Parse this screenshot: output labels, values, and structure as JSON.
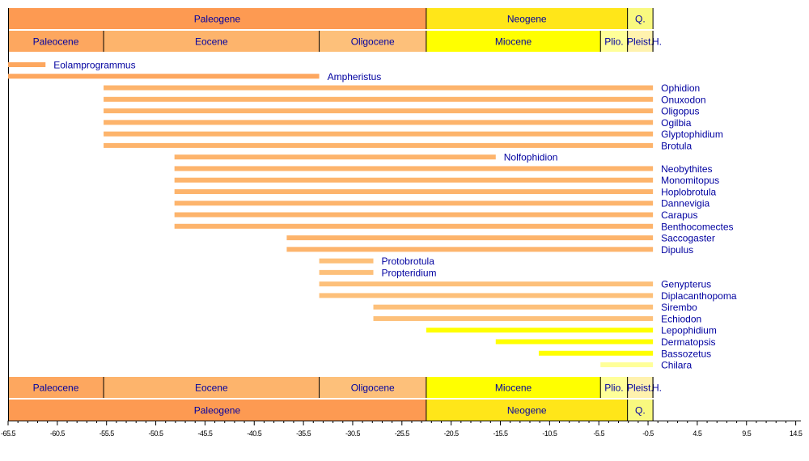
{
  "chart_data": {
    "type": "bar",
    "orientation": "horizontal-range",
    "title": "",
    "xlabel": "",
    "ylabel": "",
    "xlim": [
      -65.5,
      14.5
    ],
    "x_ticks": [
      -65.5,
      -60.5,
      -55.5,
      -50.5,
      -45.5,
      -40.5,
      -35.5,
      -30.5,
      -25.5,
      -20.5,
      -15.5,
      -10.5,
      -5.5,
      -0.5,
      4.5,
      9.5,
      14.5
    ],
    "grid": false,
    "periods": [
      {
        "name": "Paleogene",
        "start": -65.5,
        "end": -23.03,
        "color": "#FD9A52"
      },
      {
        "name": "Neogene",
        "start": -23.03,
        "end": -2.588,
        "color": "#FFE619"
      },
      {
        "name": "Q.",
        "start": -2.588,
        "end": 0,
        "color": "#F9F97F"
      }
    ],
    "epochs": [
      {
        "name": "Paleocene",
        "start": -65.5,
        "end": -55.8,
        "color": "#FDA75F"
      },
      {
        "name": "Eocene",
        "start": -55.8,
        "end": -33.9,
        "color": "#FDB46C"
      },
      {
        "name": "Oligocene",
        "start": -33.9,
        "end": -23.03,
        "color": "#FDC07A"
      },
      {
        "name": "Miocene",
        "start": -23.03,
        "end": -5.332,
        "color": "#FFFF00"
      },
      {
        "name": "Plio.",
        "start": -5.332,
        "end": -2.588,
        "color": "#FFFF99"
      },
      {
        "name": "Pleist.",
        "start": -2.588,
        "end": -0.0117,
        "color": "#FFF2AE"
      },
      {
        "name": "H.",
        "start": -0.0117,
        "end": 0,
        "color": "#FEF2E0"
      }
    ],
    "series": [
      {
        "name": "Eolamprogrammus",
        "start": -65.5,
        "end": -61.7,
        "color": "#FDA75F"
      },
      {
        "name": "Ampheristus",
        "start": -65.5,
        "end": -33.9,
        "color": "#FDA75F"
      },
      {
        "name": "Ophidion",
        "start": -55.8,
        "end": 0,
        "color": "#FDB46C"
      },
      {
        "name": "Onuxodon",
        "start": -55.8,
        "end": 0,
        "color": "#FDB46C"
      },
      {
        "name": "Oligopus",
        "start": -55.8,
        "end": 0,
        "color": "#FDB46C"
      },
      {
        "name": "Ogilbia",
        "start": -55.8,
        "end": 0,
        "color": "#FDB46C"
      },
      {
        "name": "Glyptophidium",
        "start": -55.8,
        "end": 0,
        "color": "#FDB46C"
      },
      {
        "name": "Brotula",
        "start": -55.8,
        "end": 0,
        "color": "#FDB46C"
      },
      {
        "name": "Nolfophidion",
        "start": -48.6,
        "end": -15.97,
        "color": "#FDB46C"
      },
      {
        "name": "Neobythites",
        "start": -48.6,
        "end": 0,
        "color": "#FDB46C"
      },
      {
        "name": "Monomitopus",
        "start": -48.6,
        "end": 0,
        "color": "#FDB46C"
      },
      {
        "name": "Hoplobrotula",
        "start": -48.6,
        "end": 0,
        "color": "#FDB46C"
      },
      {
        "name": "Dannevigia",
        "start": -48.6,
        "end": 0,
        "color": "#FDB46C"
      },
      {
        "name": "Carapus",
        "start": -48.6,
        "end": 0,
        "color": "#FDB46C"
      },
      {
        "name": "Benthocomectes",
        "start": -48.6,
        "end": 0,
        "color": "#FDB46C"
      },
      {
        "name": "Saccogaster",
        "start": -37.2,
        "end": 0,
        "color": "#FDB46C"
      },
      {
        "name": "Dipulus",
        "start": -37.2,
        "end": 0,
        "color": "#FDB46C"
      },
      {
        "name": "Protobrotula",
        "start": -33.9,
        "end": -28.4,
        "color": "#FDC07A"
      },
      {
        "name": "Propteridium",
        "start": -33.9,
        "end": -28.4,
        "color": "#FDC07A"
      },
      {
        "name": "Genypterus",
        "start": -33.9,
        "end": 0,
        "color": "#FDC07A"
      },
      {
        "name": "Diplacanthopoma",
        "start": -33.9,
        "end": 0,
        "color": "#FDC07A"
      },
      {
        "name": "Sirembo",
        "start": -28.4,
        "end": 0,
        "color": "#FDC07A"
      },
      {
        "name": "Echiodon",
        "start": -28.4,
        "end": 0,
        "color": "#FDC07A"
      },
      {
        "name": "Lepophidium",
        "start": -23.03,
        "end": 0,
        "color": "#FFFF00"
      },
      {
        "name": "Dermatopsis",
        "start": -15.97,
        "end": 0,
        "color": "#FFFF00"
      },
      {
        "name": "Bassozetus",
        "start": -11.6,
        "end": 0,
        "color": "#FFFF00"
      },
      {
        "name": "Chilara",
        "start": -5.332,
        "end": 0,
        "color": "#FFFF99"
      }
    ],
    "label_color": "#0000A0"
  }
}
